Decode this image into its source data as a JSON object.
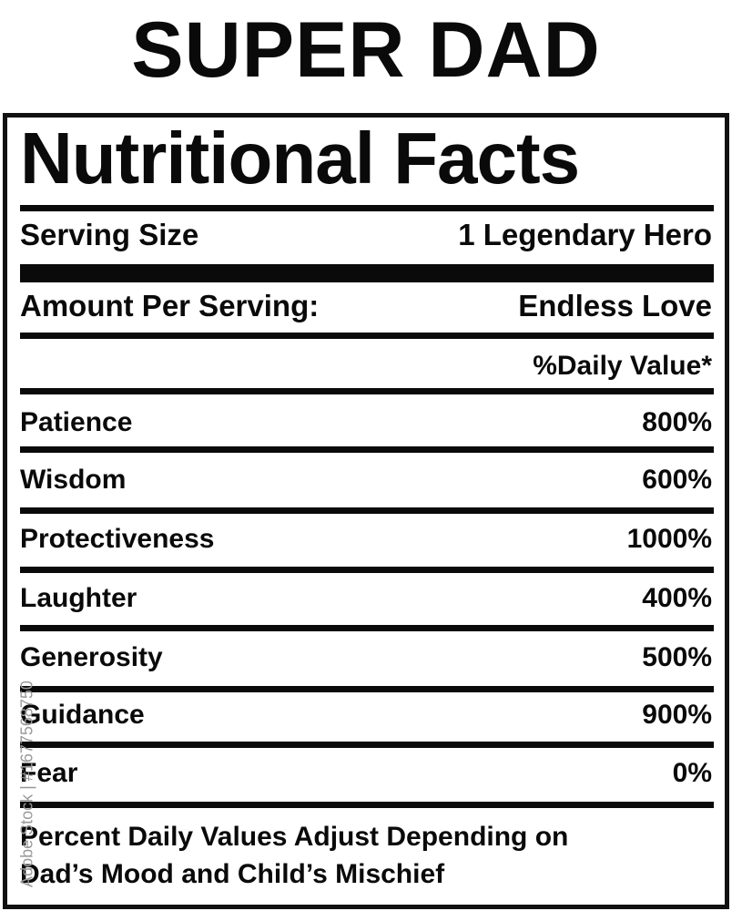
{
  "title": "SUPER DAD",
  "label": {
    "heading": "Nutritional Facts",
    "serving_size": {
      "label": "Serving Size",
      "value": "1 Legendary Hero"
    },
    "amount_per_serving": {
      "label": "Amount Per Serving:",
      "value": "Endless Love"
    },
    "daily_value_header": "%Daily Value*",
    "nutrients": [
      {
        "name": "Patience",
        "value": "800%"
      },
      {
        "name": "Wisdom",
        "value": "600%"
      },
      {
        "name": "Protectiveness",
        "value": "1000%"
      },
      {
        "name": "Laughter",
        "value": "400%"
      },
      {
        "name": "Generosity",
        "value": "500%"
      },
      {
        "name": "Guidance",
        "value": "900%"
      },
      {
        "name": "Fear",
        "value": "0%"
      }
    ],
    "footnote_line1": "Percent Daily Values Adjust Depending on",
    "footnote_line2": "Dad’s Mood and Child’s Mischief"
  },
  "watermark": "Adobe Stock | #1677568750"
}
